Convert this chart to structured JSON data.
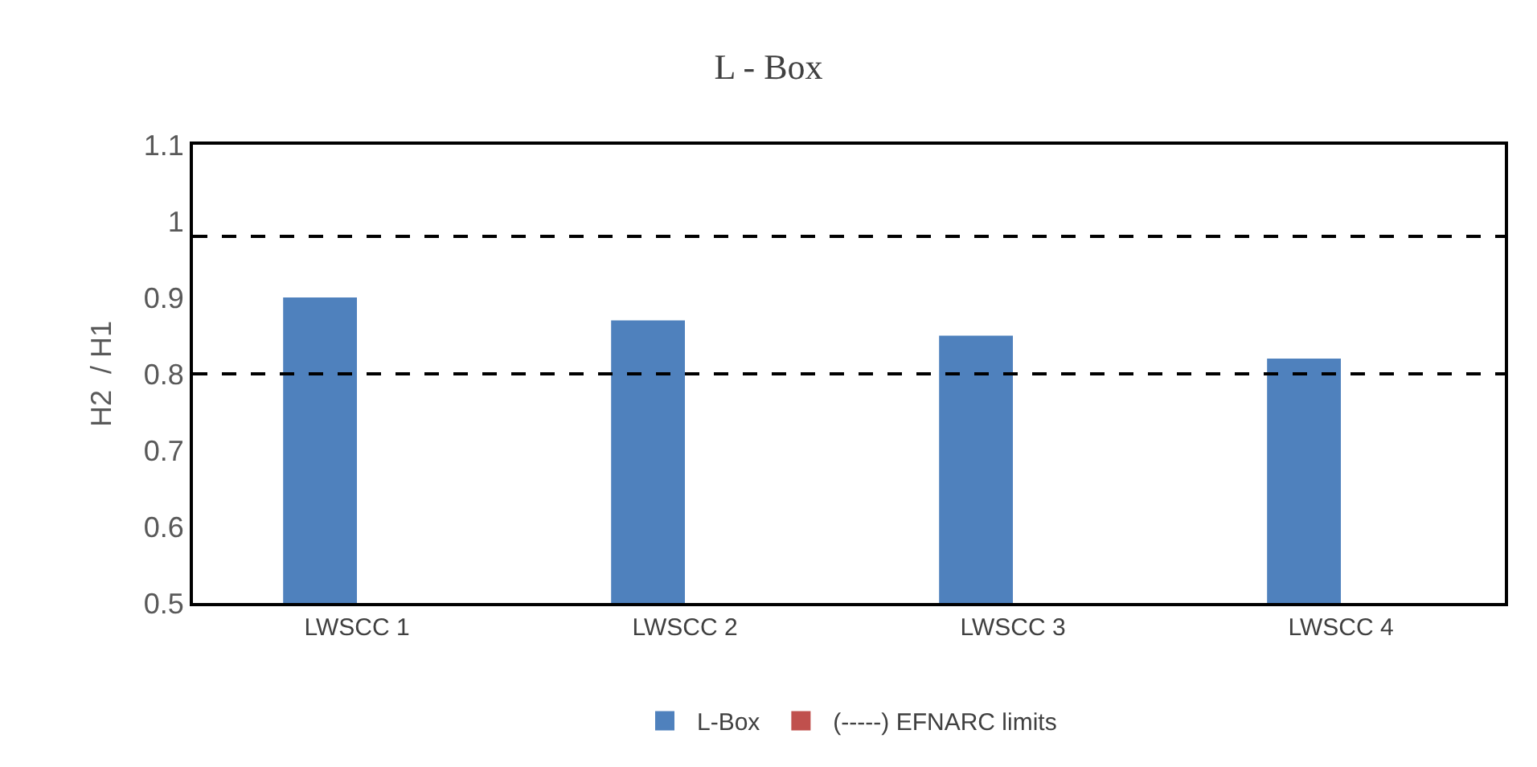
{
  "chart_data": {
    "type": "bar",
    "title": "L - Box",
    "ylabel": "H2  / H1",
    "categories": [
      "LWSCC 1",
      "LWSCC 2",
      "LWSCC 3",
      "LWSCC 4"
    ],
    "series": [
      {
        "name": "L-Box",
        "color": "#4f81bd",
        "values": [
          0.9,
          0.87,
          0.85,
          0.82
        ]
      },
      {
        "name": "(-----) EFNARC limits",
        "color": "#c0504d",
        "values": [
          null,
          null,
          null,
          null
        ]
      }
    ],
    "ylim": [
      0.5,
      1.1
    ],
    "yticks": [
      0.5,
      0.6,
      0.7,
      0.8,
      0.9,
      1,
      1.1
    ],
    "ref_lines": [
      {
        "axis": "y",
        "value": 0.98,
        "color": "#000000",
        "line_style": "dashed"
      },
      {
        "axis": "y",
        "value": 0.8,
        "color": "#000000",
        "line_style": "dashed"
      }
    ],
    "legend": "bottom"
  }
}
